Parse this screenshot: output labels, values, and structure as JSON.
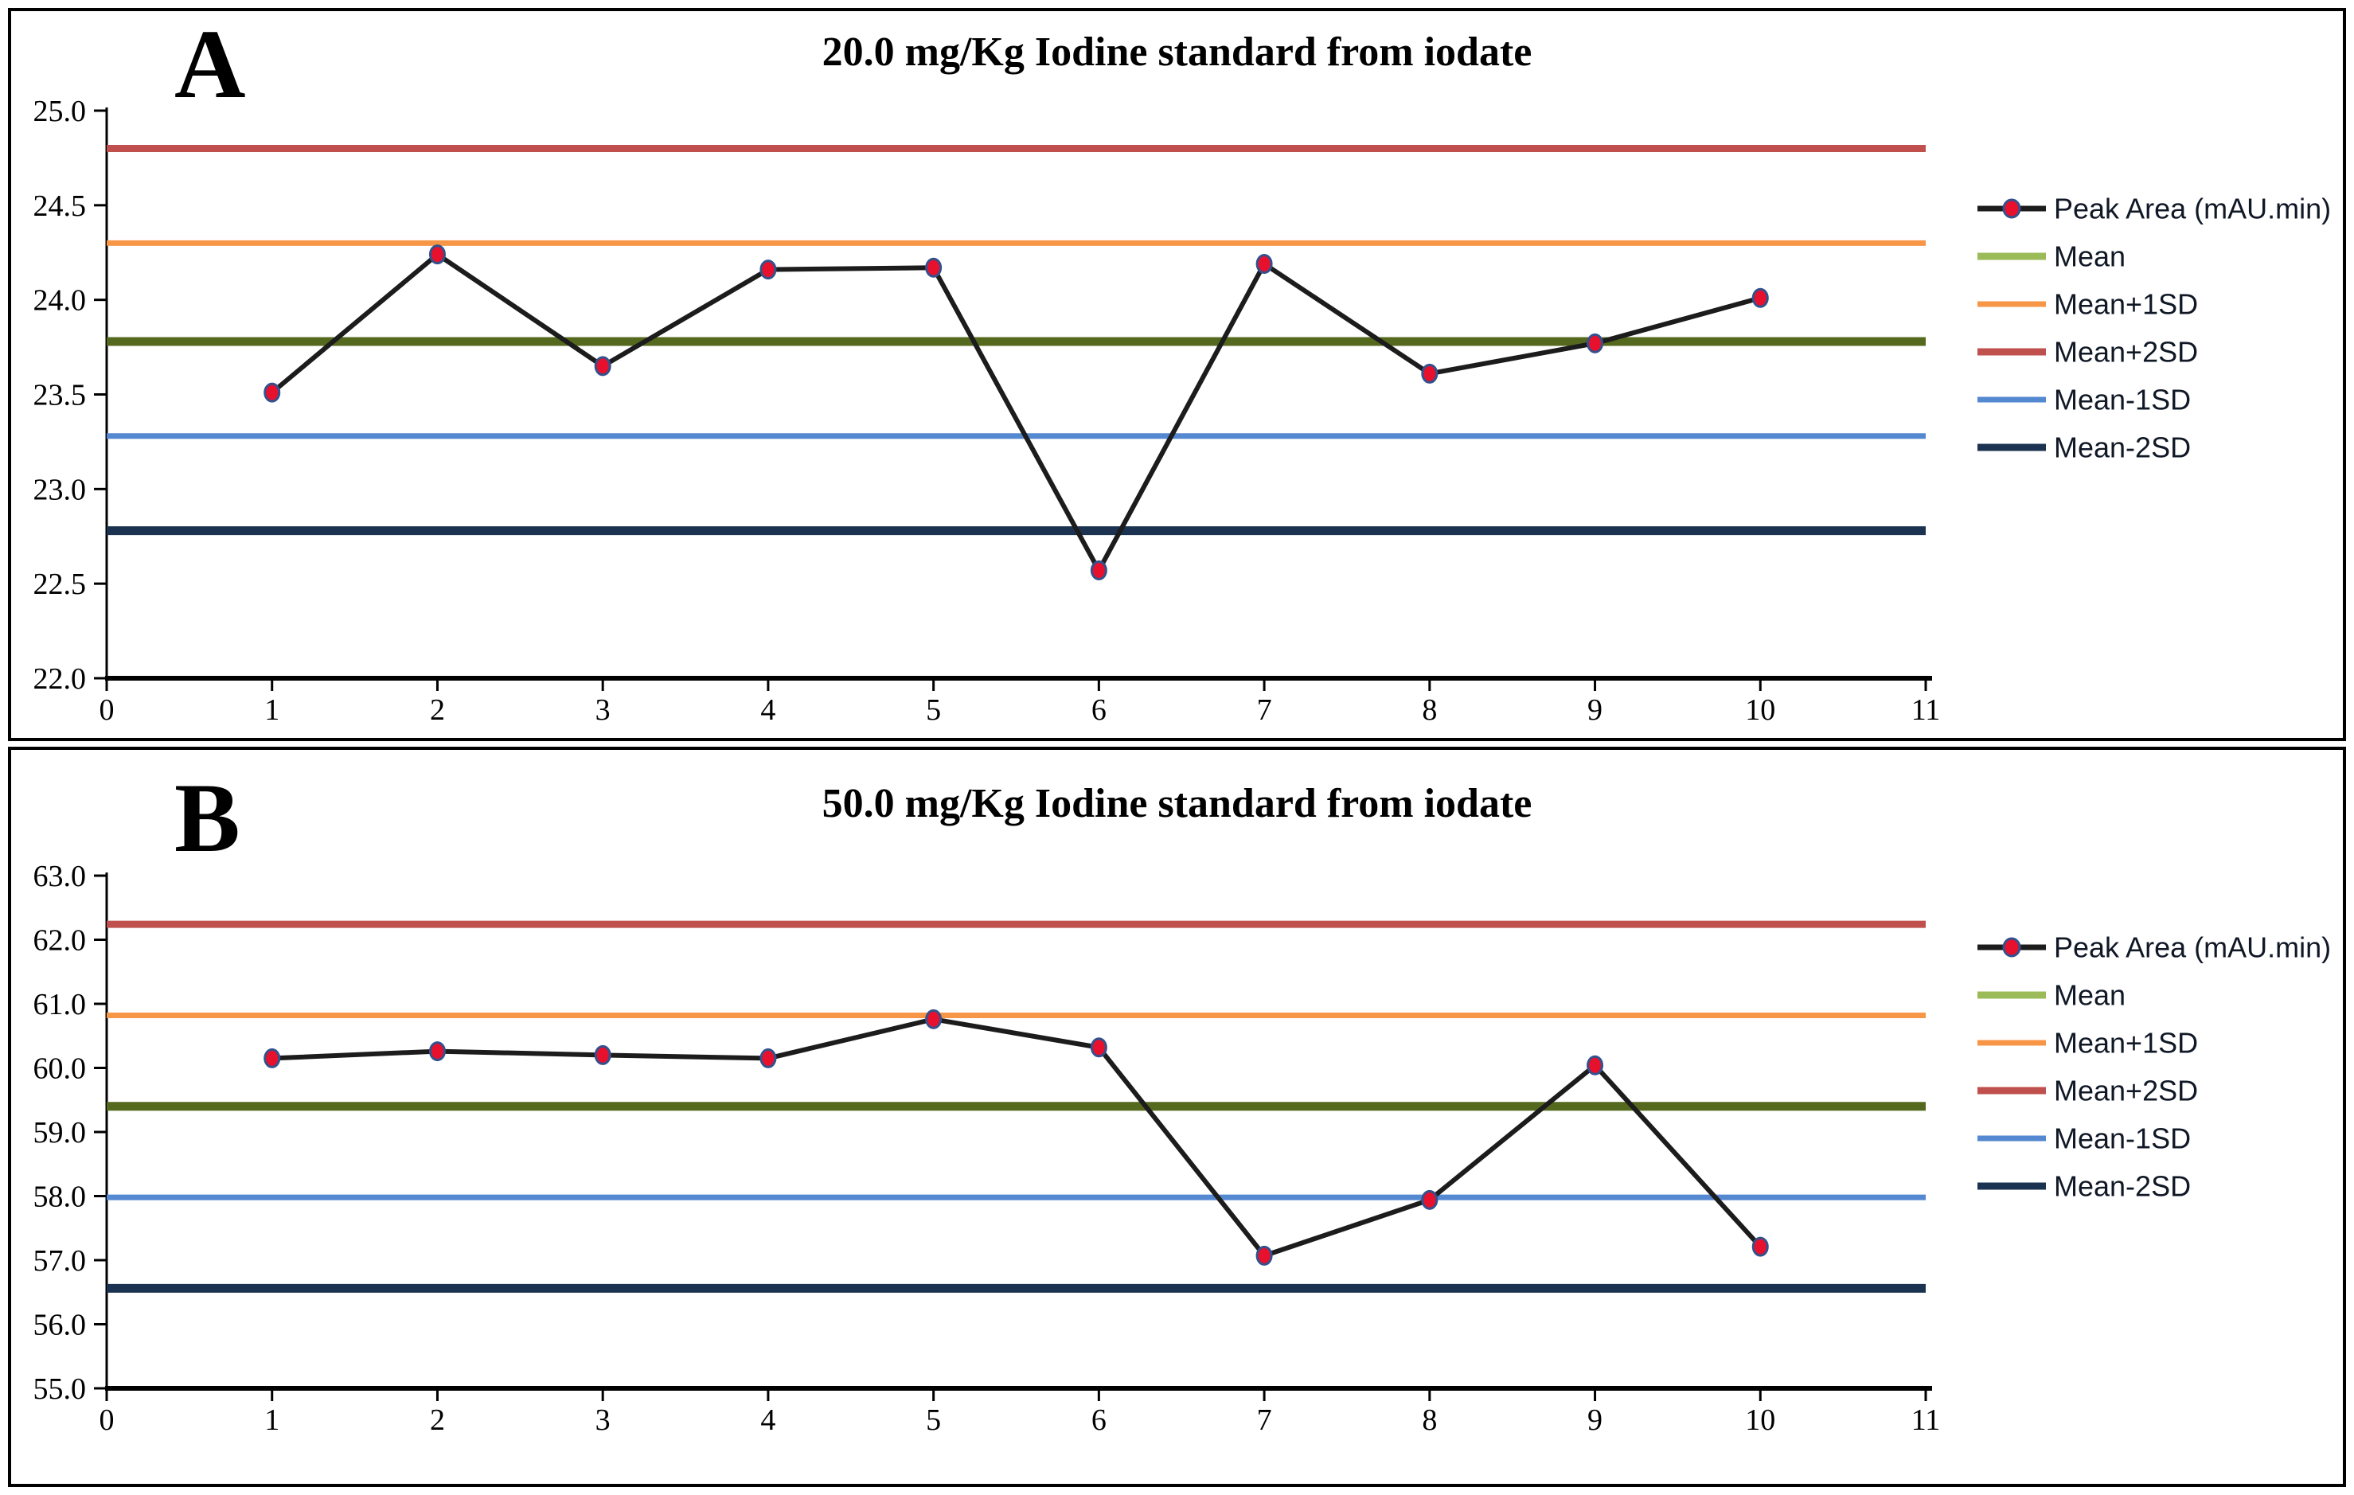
{
  "frame": {
    "background": "#ffffff",
    "border_color": "#000000"
  },
  "colors": {
    "series_line": "#1c1c1c",
    "marker_fill": "#e8112d",
    "marker_edge": "#33518c",
    "mean_line": "#55691e",
    "mean_legend": "#9bbb59",
    "plus1sd": "#f79646",
    "plus2sd": "#c0504d",
    "minus1sd": "#5488d0",
    "minus2sd": "#1b3350",
    "axis": "#000000"
  },
  "chart_data": [
    {
      "panel_label": "A",
      "type": "line",
      "title": "20.0 mg/Kg Iodine standard from iodate",
      "x": [
        1,
        2,
        3,
        4,
        5,
        6,
        7,
        8,
        9,
        10
      ],
      "series": [
        {
          "name": "Peak Area (mAU.min)",
          "values": [
            23.51,
            24.24,
            23.65,
            24.16,
            24.17,
            22.57,
            24.19,
            23.61,
            23.77,
            24.01
          ],
          "line_color": "#1c1c1c",
          "marker_fill": "#e8112d",
          "marker_edge": "#33518c"
        }
      ],
      "control_lines": [
        {
          "name": "Mean+2SD",
          "value": 24.8,
          "color": "#c0504d",
          "width": 9
        },
        {
          "name": "Mean+1SD",
          "value": 24.3,
          "color": "#f79646",
          "width": 7
        },
        {
          "name": "Mean",
          "value": 23.78,
          "color": "#55691e",
          "legend_color": "#9bbb59",
          "width": 11
        },
        {
          "name": "Mean-1SD",
          "value": 23.28,
          "color": "#5488d0",
          "width": 7
        },
        {
          "name": "Mean-2SD",
          "value": 22.78,
          "color": "#1b3350",
          "width": 11
        }
      ],
      "legend": [
        "Peak Area (mAU.min)",
        "Mean",
        "Mean+1SD",
        "Mean+2SD",
        "Mean-1SD",
        "Mean-2SD"
      ],
      "legend_position": "right",
      "xlim": [
        0,
        11
      ],
      "ylim": [
        22.0,
        25.0
      ],
      "xtick_labels": [
        "0",
        "1",
        "2",
        "3",
        "4",
        "5",
        "6",
        "7",
        "8",
        "9",
        "10",
        "11"
      ],
      "ytick_labels": [
        "25.0",
        "24.5",
        "24.0",
        "23.5",
        "23.0",
        "22.5",
        "22.0"
      ],
      "grid": false
    },
    {
      "panel_label": "B",
      "type": "line",
      "title": "50.0 mg/Kg Iodine standard from iodate",
      "x": [
        1,
        2,
        3,
        4,
        5,
        6,
        7,
        8,
        9,
        10
      ],
      "series": [
        {
          "name": "Peak Area (mAU.min)",
          "values": [
            60.15,
            60.26,
            60.2,
            60.15,
            60.76,
            60.32,
            57.07,
            57.94,
            60.04,
            57.21
          ],
          "line_color": "#1c1c1c",
          "marker_fill": "#e8112d",
          "marker_edge": "#33518c"
        }
      ],
      "control_lines": [
        {
          "name": "Mean+2SD",
          "value": 62.24,
          "color": "#c0504d",
          "width": 9
        },
        {
          "name": "Mean+1SD",
          "value": 60.82,
          "color": "#f79646",
          "width": 7
        },
        {
          "name": "Mean",
          "value": 59.4,
          "color": "#55691e",
          "legend_color": "#9bbb59",
          "width": 11
        },
        {
          "name": "Mean-1SD",
          "value": 57.98,
          "color": "#5488d0",
          "width": 7
        },
        {
          "name": "Mean-2SD",
          "value": 56.56,
          "color": "#1b3350",
          "width": 11
        }
      ],
      "legend": [
        "Peak Area (mAU.min)",
        "Mean",
        "Mean+1SD",
        "Mean+2SD",
        "Mean-1SD",
        "Mean-2SD"
      ],
      "legend_position": "right",
      "xlim": [
        0,
        11
      ],
      "ylim": [
        55.0,
        63.0
      ],
      "xtick_labels": [
        "0",
        "1",
        "2",
        "3",
        "4",
        "5",
        "6",
        "7",
        "8",
        "9",
        "10",
        "11"
      ],
      "ytick_labels": [
        "63.0",
        "62.0",
        "61.0",
        "60.0",
        "59.0",
        "58.0",
        "57.0",
        "56.0",
        "55.0"
      ],
      "grid": false
    }
  ]
}
